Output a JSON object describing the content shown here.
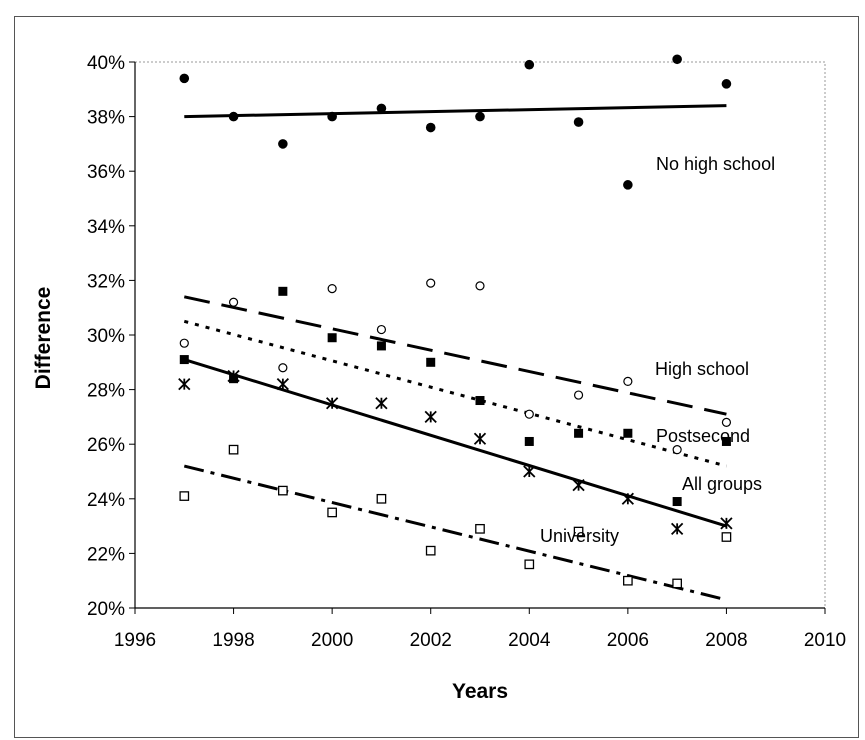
{
  "chart_data": {
    "type": "scatter",
    "title": "",
    "xlabel": "Years",
    "ylabel": "Difference",
    "xlim": [
      1996,
      2010
    ],
    "ylim": [
      0.2,
      0.4
    ],
    "xticks": [
      "1996",
      "1998",
      "2000",
      "2002",
      "2004",
      "2006",
      "2008",
      "2010"
    ],
    "yticks": [
      "20%",
      "22%",
      "24%",
      "26%",
      "28%",
      "30%",
      "32%",
      "34%",
      "36%",
      "38%",
      "40%"
    ],
    "grid": false,
    "series": [
      {
        "name": "No high school",
        "marker": "filled-circle",
        "x": [
          1997,
          1998,
          1999,
          2000,
          2001,
          2002,
          2003,
          2004,
          2005,
          2006,
          2007,
          2008
        ],
        "y": [
          0.394,
          0.38,
          0.37,
          0.38,
          0.383,
          0.376,
          0.38,
          0.399,
          0.378,
          0.355,
          0.401,
          0.392
        ],
        "trend": {
          "style": "solid",
          "x": [
            1997,
            2008
          ],
          "y": [
            0.38,
            0.384
          ]
        }
      },
      {
        "name": "High school",
        "marker": "open-circle",
        "x": [
          1997,
          1998,
          1999,
          2000,
          2001,
          2002,
          2003,
          2004,
          2005,
          2006,
          2007,
          2008
        ],
        "y": [
          0.297,
          0.312,
          0.288,
          0.317,
          0.302,
          0.319,
          0.318,
          0.271,
          0.278,
          0.283,
          0.258,
          0.268
        ],
        "trend": {
          "style": "long-dash",
          "x": [
            1997,
            2008
          ],
          "y": [
            0.314,
            0.271
          ]
        }
      },
      {
        "name": "Postsecond",
        "marker": "filled-square",
        "x": [
          1997,
          1998,
          1999,
          2000,
          2001,
          2002,
          2003,
          2004,
          2005,
          2006,
          2007,
          2008
        ],
        "y": [
          0.291,
          0.284,
          0.316,
          0.299,
          0.296,
          0.29,
          0.276,
          0.261,
          0.264,
          0.264,
          0.239,
          0.261
        ],
        "trend": {
          "style": "dotted",
          "x": [
            1997,
            2008
          ],
          "y": [
            0.305,
            0.252
          ]
        }
      },
      {
        "name": "All groups",
        "marker": "asterisk",
        "x": [
          1997,
          1998,
          1999,
          2000,
          2001,
          2002,
          2003,
          2004,
          2005,
          2006,
          2007,
          2008
        ],
        "y": [
          0.282,
          0.285,
          0.282,
          0.275,
          0.275,
          0.27,
          0.262,
          0.25,
          0.245,
          0.24,
          0.229,
          0.231
        ],
        "trend": {
          "style": "solid",
          "x": [
            1997,
            2008
          ],
          "y": [
            0.291,
            0.23
          ]
        }
      },
      {
        "name": "University",
        "marker": "open-square",
        "x": [
          1997,
          1998,
          1999,
          2000,
          2001,
          2002,
          2003,
          2004,
          2005,
          2006,
          2007,
          2008
        ],
        "y": [
          0.241,
          0.258,
          0.243,
          0.235,
          0.24,
          0.221,
          0.229,
          0.216,
          0.228,
          0.21,
          0.209,
          0.226
        ],
        "trend": {
          "style": "dash-dot",
          "x": [
            1997,
            2008
          ],
          "y": [
            0.252,
            0.203
          ]
        }
      }
    ],
    "annotations": [
      {
        "text": "No high school",
        "series": "No high school"
      },
      {
        "text": "High school",
        "series": "High school"
      },
      {
        "text": "Postsecond",
        "series": "Postsecond"
      },
      {
        "text": "All groups",
        "series": "All groups"
      },
      {
        "text": "University",
        "series": "University"
      }
    ]
  }
}
